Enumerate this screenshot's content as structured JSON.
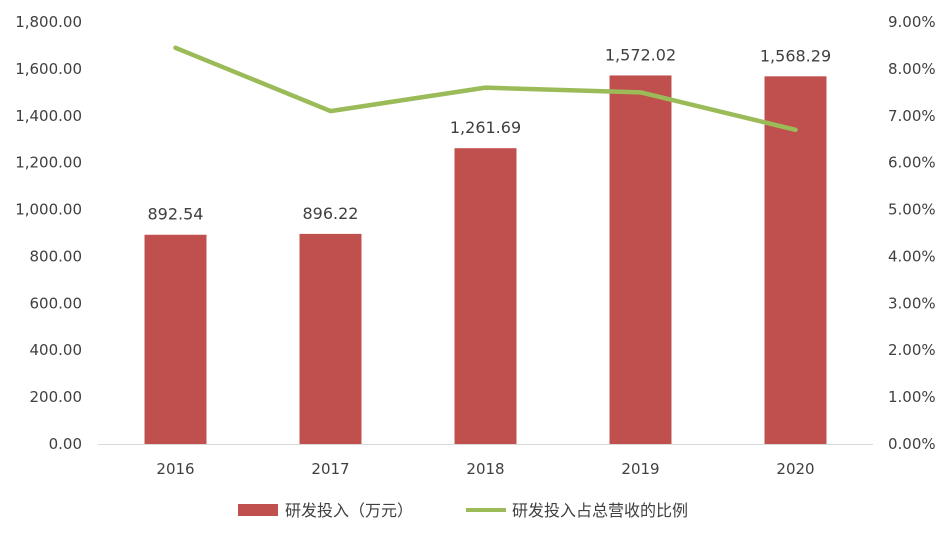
{
  "chart_data": {
    "type": "bar",
    "categories": [
      "2016",
      "2017",
      "2018",
      "2019",
      "2020"
    ],
    "series": [
      {
        "name": "研发投入（万元）",
        "type": "bar",
        "axis": "left",
        "color": "#c0504d",
        "values": [
          892.54,
          896.22,
          1261.69,
          1572.02,
          1568.29
        ],
        "data_labels": [
          "892.54",
          "896.22",
          "1,261.69",
          "1,572.02",
          "1,568.29"
        ]
      },
      {
        "name": "研发投入占总营收的比例",
        "type": "line",
        "axis": "right",
        "color": "#9bbb59",
        "values": [
          8.45,
          7.1,
          7.6,
          7.5,
          6.7
        ]
      }
    ],
    "y_left": {
      "ylim": [
        0,
        1800
      ],
      "ticks": [
        0,
        200,
        400,
        600,
        800,
        1000,
        1200,
        1400,
        1600,
        1800
      ],
      "tick_labels": [
        "0.00",
        "200.00",
        "400.00",
        "600.00",
        "800.00",
        "1,000.00",
        "1,200.00",
        "1,400.00",
        "1,600.00",
        "1,800.00"
      ]
    },
    "y_right": {
      "ylim": [
        0,
        9
      ],
      "ticks": [
        0,
        1,
        2,
        3,
        4,
        5,
        6,
        7,
        8,
        9
      ],
      "tick_labels": [
        "0.00%",
        "1.00%",
        "2.00%",
        "3.00%",
        "4.00%",
        "5.00%",
        "6.00%",
        "7.00%",
        "8.00%",
        "9.00%"
      ]
    },
    "grid": false,
    "legend_position": "bottom"
  }
}
